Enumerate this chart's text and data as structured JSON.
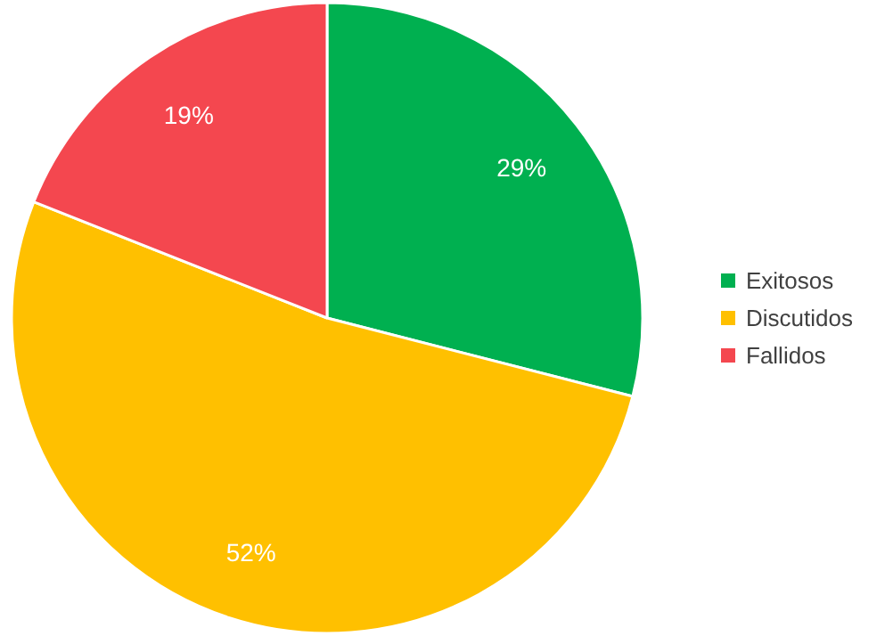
{
  "chart_data": {
    "type": "pie",
    "categories": [
      "Exitosos",
      "Discutidos",
      "Fallidos"
    ],
    "values": [
      29,
      52,
      19
    ],
    "colors": [
      "#00b050",
      "#ffc000",
      "#f4474f"
    ],
    "value_labels": [
      "29%",
      "52%",
      "19%"
    ],
    "legend": "right"
  }
}
